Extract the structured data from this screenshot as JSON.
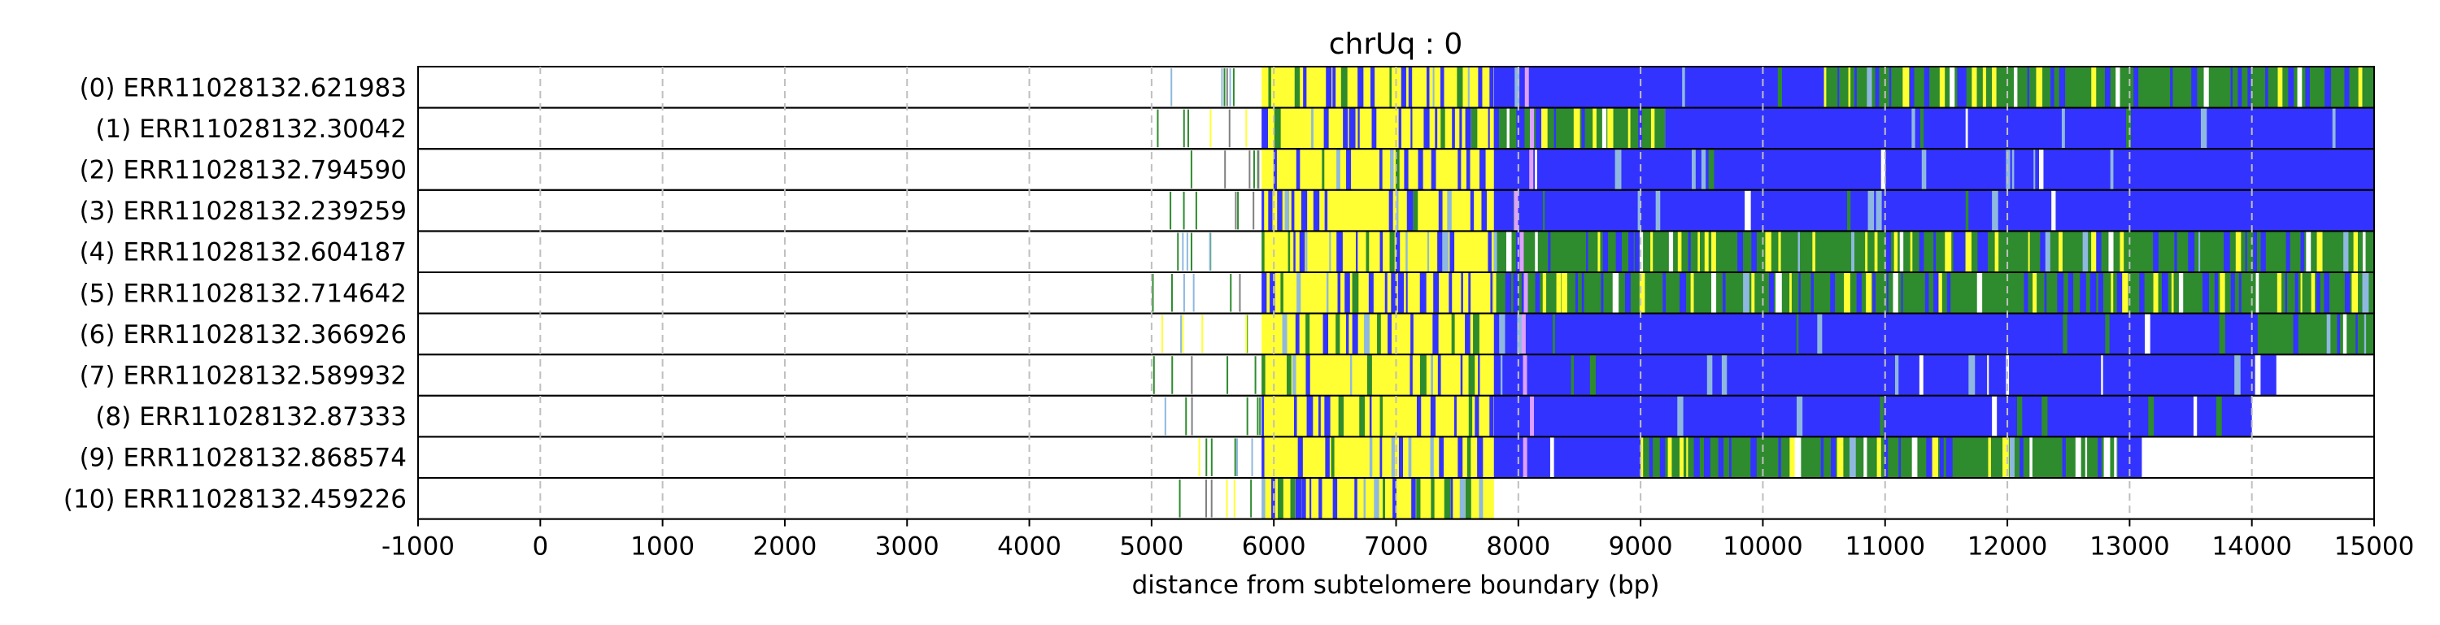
{
  "chart_data": {
    "type": "heatmap",
    "title": "chrUq : 0",
    "xlabel": "distance from subtelomere boundary (bp)",
    "ylabel": "",
    "xlim": [
      -1000,
      15000
    ],
    "xticks": [
      -1000,
      0,
      1000,
      2000,
      3000,
      4000,
      5000,
      6000,
      7000,
      8000,
      9000,
      10000,
      11000,
      12000,
      13000,
      14000,
      15000
    ],
    "grid": "vertical dashed at x ticks",
    "colors": {
      "blue": "#3333ff",
      "yellow": "#ffff33",
      "green": "#2e8b2e",
      "light_blue": "#8fb8e0",
      "violet": "#e0a0ff",
      "gray": "#808080",
      "white": "#ffffff"
    },
    "reads": [
      {
        "label": "(0) ERR11028132.621983",
        "start": 5900,
        "end": 15000,
        "mix": [
          [
            5900,
            7800,
            "yellow"
          ],
          [
            7800,
            10500,
            "blue"
          ],
          [
            10500,
            15000,
            "mixed"
          ]
        ]
      },
      {
        "label": "(1) ERR11028132.30042",
        "start": 5900,
        "end": 15000,
        "mix": [
          [
            5900,
            7800,
            "yellow"
          ],
          [
            7800,
            9200,
            "mixed"
          ],
          [
            9200,
            15000,
            "blue"
          ]
        ]
      },
      {
        "label": "(2) ERR11028132.794590",
        "start": 5900,
        "end": 15000,
        "mix": [
          [
            5900,
            7800,
            "yellow"
          ],
          [
            7800,
            15000,
            "blue"
          ]
        ]
      },
      {
        "label": "(3) ERR11028132.239259",
        "start": 5900,
        "end": 15000,
        "mix": [
          [
            5900,
            7800,
            "yellow"
          ],
          [
            7800,
            15000,
            "blue"
          ]
        ]
      },
      {
        "label": "(4) ERR11028132.604187",
        "start": 5900,
        "end": 15000,
        "mix": [
          [
            5900,
            7800,
            "yellow"
          ],
          [
            7800,
            15000,
            "mixed"
          ]
        ]
      },
      {
        "label": "(5) ERR11028132.714642",
        "start": 5900,
        "end": 15000,
        "mix": [
          [
            5900,
            7800,
            "yellow"
          ],
          [
            7800,
            15000,
            "mixed"
          ]
        ]
      },
      {
        "label": "(6) ERR11028132.366926",
        "start": 5900,
        "end": 15000,
        "mix": [
          [
            5900,
            7800,
            "yellow"
          ],
          [
            7800,
            14000,
            "blue"
          ],
          [
            14000,
            15000,
            "mixed"
          ]
        ]
      },
      {
        "label": "(7) ERR11028132.589932",
        "start": 5900,
        "end": 14200,
        "mix": [
          [
            5900,
            7800,
            "yellow"
          ],
          [
            7800,
            14200,
            "blue"
          ]
        ]
      },
      {
        "label": "(8) ERR11028132.87333",
        "start": 5900,
        "end": 14000,
        "mix": [
          [
            5900,
            7800,
            "yellow"
          ],
          [
            7800,
            14000,
            "blue"
          ]
        ]
      },
      {
        "label": "(9) ERR11028132.868574",
        "start": 5900,
        "end": 13100,
        "mix": [
          [
            5900,
            7800,
            "yellow"
          ],
          [
            7800,
            9000,
            "blue"
          ],
          [
            9000,
            12900,
            "mixed"
          ],
          [
            12900,
            13100,
            "blue"
          ]
        ]
      },
      {
        "label": "(10) ERR11028132.459226",
        "start": 5900,
        "end": 7800,
        "mix": [
          [
            5900,
            7800,
            "yellow"
          ]
        ]
      }
    ],
    "scattered_region": [
      5000,
      5900
    ]
  }
}
